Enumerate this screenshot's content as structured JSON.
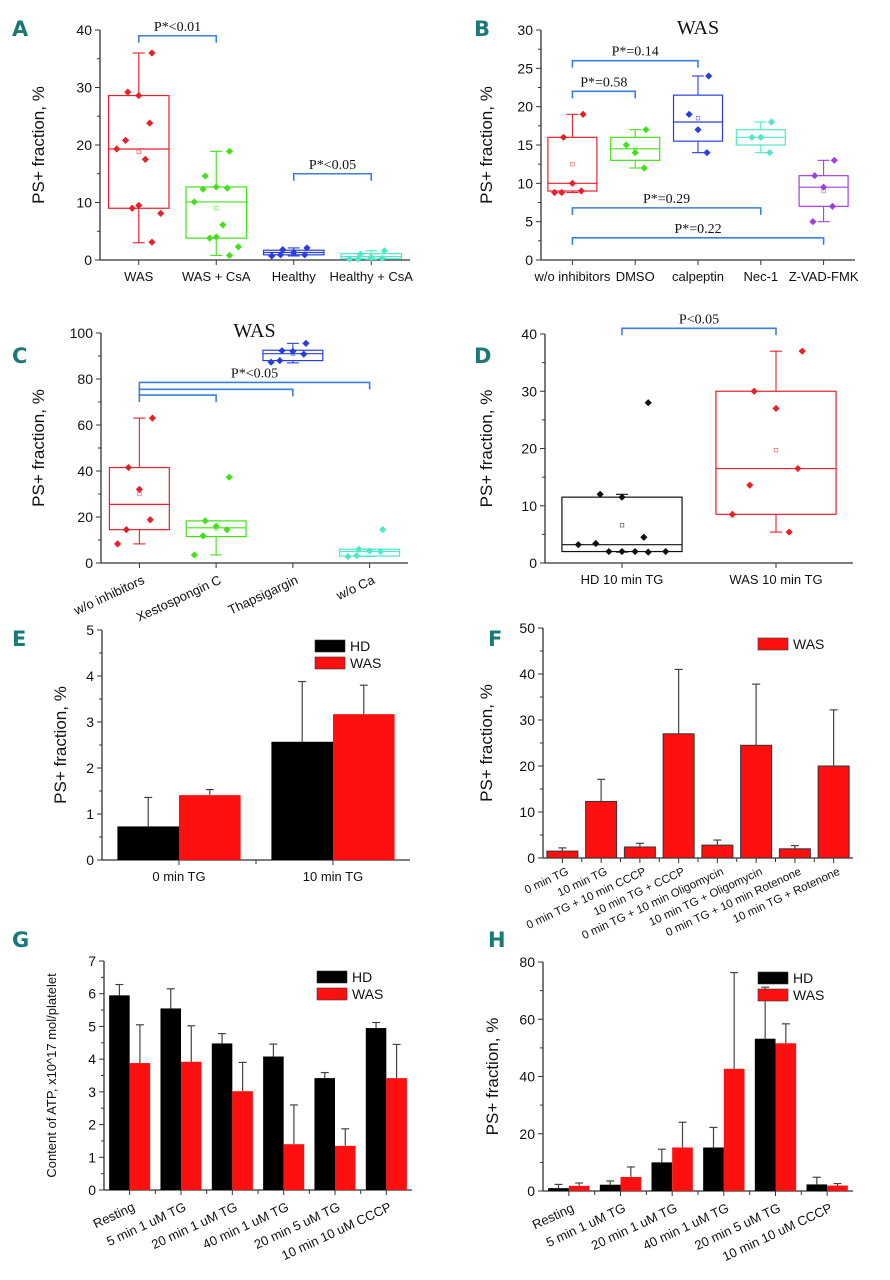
{
  "figure": {
    "panels": [
      "A",
      "B",
      "C",
      "D",
      "E",
      "F",
      "G",
      "H"
    ]
  },
  "chart_data": [
    {
      "panel": "A",
      "type": "box",
      "title": "",
      "xlabel": "",
      "ylabel": "PS+ fraction, %",
      "ylim": [
        0,
        40
      ],
      "yticks": [
        0,
        10,
        20,
        30,
        40
      ],
      "categories": [
        "WAS",
        "WAS + CsA",
        "Healthy",
        "Healthy + CsA"
      ],
      "colors": [
        "#e8202a",
        "#44e01a",
        "#2a3ee0",
        "#50e8c8"
      ],
      "boxes": [
        {
          "q1": 9,
          "median": 19.3,
          "q3": 28.6,
          "whisker_low": 3,
          "whisker_high": 36,
          "mean": 18.8,
          "points": [
            36,
            29.2,
            28.6,
            23.8,
            20.8,
            19.3,
            17.5,
            9.5,
            9,
            8.1,
            3.1
          ]
        },
        {
          "q1": 3.8,
          "median": 10.1,
          "q3": 12.7,
          "whisker_low": 0.8,
          "whisker_high": 18.9,
          "mean": 9,
          "points": [
            18.9,
            14.6,
            12.7,
            12.5,
            12.3,
            10.1,
            6.1,
            4,
            3.8,
            2.3,
            0.8
          ]
        },
        {
          "q1": 0.9,
          "median": 1.3,
          "q3": 1.7,
          "whisker_low": 0.7,
          "whisker_high": 2.1,
          "mean": 1.3,
          "points": [
            2.1,
            1.8,
            1.3,
            0.9,
            0.9,
            0.7
          ]
        },
        {
          "q1": 0.2,
          "median": 0.6,
          "q3": 1.1,
          "whisker_low": 0.1,
          "whisker_high": 1.6,
          "mean": 0.7,
          "points": [
            1.6,
            1,
            0.4,
            0.3,
            0.2,
            0.2
          ]
        }
      ],
      "annotations": [
        {
          "text": "P*<0.01",
          "from": 0,
          "to": 1,
          "y": 39
        },
        {
          "text": "P*<0.05",
          "from": 2,
          "to": 3,
          "y": 15
        }
      ]
    },
    {
      "panel": "B",
      "type": "box",
      "title": "WAS",
      "xlabel": "",
      "ylabel": "PS+ fraction, %",
      "ylim": [
        0,
        30
      ],
      "yticks": [
        0,
        5,
        10,
        15,
        20,
        25,
        30
      ],
      "categories": [
        "w/o inhibitors",
        "DMSO",
        "calpeptin",
        "Nec-1",
        "Z-VAD-FMK"
      ],
      "colors": [
        "#e8202a",
        "#44e01a",
        "#2a3ee0",
        "#50e8c8",
        "#a040e0"
      ],
      "boxes": [
        {
          "q1": 9,
          "median": 10,
          "q3": 16,
          "whisker_low": 8.8,
          "whisker_high": 19,
          "mean": 12.5,
          "points": [
            19,
            16,
            10,
            9,
            8.8,
            8.8
          ]
        },
        {
          "q1": 13,
          "median": 14.5,
          "q3": 16,
          "whisker_low": 12,
          "whisker_high": 17,
          "mean": 14.5,
          "points": [
            17,
            15,
            14,
            12
          ]
        },
        {
          "q1": 15.5,
          "median": 18,
          "q3": 21.5,
          "whisker_low": 14,
          "whisker_high": 24,
          "mean": 18.5,
          "points": [
            24,
            19,
            17,
            14
          ]
        },
        {
          "q1": 15,
          "median": 16,
          "q3": 17,
          "whisker_low": 14,
          "whisker_high": 18,
          "mean": 16,
          "points": [
            18,
            16,
            16,
            14
          ]
        },
        {
          "q1": 7,
          "median": 9.5,
          "q3": 11,
          "whisker_low": 5,
          "whisker_high": 13,
          "mean": 9,
          "points": [
            13,
            11,
            9.5,
            7,
            5
          ]
        }
      ],
      "annotations": [
        {
          "text": "P*=0.14",
          "from": 0,
          "to": 2,
          "y": 26
        },
        {
          "text": "P*=0.58",
          "from": 0,
          "to": 1,
          "y": 22
        },
        {
          "text": "P*=0.29",
          "from": 0,
          "to": 3,
          "y": 6.8
        },
        {
          "text": "P*=0.22",
          "from": 0,
          "to": 4,
          "y": 2.9
        }
      ]
    },
    {
      "panel": "C",
      "type": "box",
      "title": "WAS",
      "xlabel": "",
      "ylabel": "PS+ fraction, %",
      "ylim": [
        0,
        100
      ],
      "yticks": [
        0,
        20,
        40,
        60,
        80,
        100
      ],
      "categories": [
        "w/o inhibitors",
        "Xestospongin C",
        "Thapsigargin",
        "w/o Ca"
      ],
      "colors": [
        "#e8202a",
        "#44e01a",
        "#2a3ee0",
        "#50e8c8"
      ],
      "boxes": [
        {
          "q1": 14.5,
          "median": 25.5,
          "q3": 41.5,
          "whisker_low": 8.3,
          "whisker_high": 63,
          "mean": 30,
          "points": [
            63,
            41.5,
            32,
            18.8,
            14.5,
            8.3
          ]
        },
        {
          "q1": 11.5,
          "median": 15.3,
          "q3": 18.3,
          "whisker_low": 3.5,
          "whisker_high": 18.3,
          "mean": 15,
          "points": [
            37.3,
            18.3,
            16,
            14.5,
            11.8,
            3.5
          ]
        },
        {
          "q1": 88,
          "median": 91,
          "q3": 92.5,
          "whisker_low": 87,
          "whisker_high": 95.5,
          "mean": 91,
          "points": [
            95.5,
            92.3,
            92,
            90.8,
            88,
            87.3
          ]
        },
        {
          "q1": 3,
          "median": 5,
          "q3": 6,
          "whisker_low": 2.8,
          "whisker_high": 6,
          "mean": 5,
          "points": [
            14.5,
            6,
            5.3,
            5,
            3.2,
            2.8
          ]
        }
      ],
      "annotations": [
        {
          "text": "P*<0.05",
          "from": 0,
          "to": 3,
          "y": 78.5
        },
        {
          "from": 0,
          "to": 2,
          "y": 75.5
        },
        {
          "from": 0,
          "to": 1,
          "y": 73
        }
      ]
    },
    {
      "panel": "D",
      "type": "box",
      "title": "",
      "xlabel": "",
      "ylabel": "PS+ fraction, %",
      "ylim": [
        0,
        40
      ],
      "yticks": [
        0,
        10,
        20,
        30,
        40
      ],
      "categories": [
        "HD 10 min TG",
        "WAS 10 min TG"
      ],
      "colors": [
        "#111111",
        "#e8202a"
      ],
      "boxes": [
        {
          "q1": 2,
          "median": 3.2,
          "q3": 11.5,
          "whisker_low": 1.9,
          "whisker_high": 12,
          "mean": 6.6,
          "points": [
            28,
            12,
            11.5,
            4.5,
            3.4,
            3.2,
            2,
            2,
            2,
            2,
            1.9
          ]
        },
        {
          "q1": 8.5,
          "median": 16.5,
          "q3": 30,
          "whisker_low": 5.4,
          "whisker_high": 37,
          "mean": 19.7,
          "points": [
            37,
            30,
            27,
            16.5,
            13.6,
            8.5,
            5.4
          ]
        }
      ],
      "annotations": [
        {
          "text": "P<0.05",
          "from": 0,
          "to": 1,
          "y": 41
        }
      ]
    },
    {
      "panel": "E",
      "type": "bar",
      "title": "",
      "xlabel": "",
      "ylabel": "PS+ fraction, %",
      "ylim": [
        0,
        5
      ],
      "yticks": [
        0,
        1,
        2,
        3,
        4,
        5
      ],
      "categories": [
        "0 min TG",
        "10 min TG"
      ],
      "legend": "top-right",
      "series": [
        {
          "name": "HD",
          "color": "#000000",
          "values": [
            0.73,
            2.57
          ],
          "errors": [
            0.63,
            1.31
          ]
        },
        {
          "name": "WAS",
          "color": "#ff1010",
          "values": [
            1.41,
            3.17
          ],
          "errors": [
            0.12,
            0.63
          ]
        }
      ]
    },
    {
      "panel": "F",
      "type": "bar",
      "title": "",
      "xlabel": "",
      "ylabel": "PS+ fraction, %",
      "ylim": [
        0,
        50
      ],
      "yticks": [
        0,
        10,
        20,
        30,
        40,
        50
      ],
      "categories": [
        "0 min TG",
        "10 min TG",
        "0 min TG + 10 min CCCP",
        "10 min TG + CCCP",
        "0 min TG + 10 min Oligomycin",
        "10 min TG + Oligomycin",
        "0 min TG + 10 min Rotenone",
        "10 min TG + Rotenone"
      ],
      "legend": "top-right",
      "series": [
        {
          "name": "WAS",
          "color": "#ff1010",
          "values": [
            1.5,
            12.3,
            2.4,
            27,
            2.8,
            24.5,
            2,
            20
          ],
          "errors": [
            0.7,
            4.8,
            0.8,
            14,
            1.1,
            13.3,
            0.7,
            12.2
          ]
        }
      ]
    },
    {
      "panel": "G",
      "type": "bar",
      "title": "",
      "xlabel": "",
      "ylabel": "Content of ATP, x10^17 mol/platelet",
      "ylim": [
        0,
        7
      ],
      "yticks": [
        0,
        1,
        2,
        3,
        4,
        5,
        6,
        7
      ],
      "categories": [
        "Resting",
        "5 min 1 uM TG",
        "20 min 1 uM TG",
        "40 min 1 uM TG",
        "20 min 5 uM TG",
        "10 min 10 uM CCCP"
      ],
      "legend": "top-right",
      "series": [
        {
          "name": "HD",
          "color": "#000000",
          "values": [
            5.95,
            5.55,
            4.48,
            4.08,
            3.42,
            4.95
          ],
          "errors": [
            0.33,
            0.6,
            0.3,
            0.38,
            0.17,
            0.17
          ]
        },
        {
          "name": "WAS",
          "color": "#ff1010",
          "values": [
            3.88,
            3.92,
            3.02,
            1.4,
            1.35,
            3.42
          ],
          "errors": [
            1.17,
            1.1,
            0.88,
            1.2,
            0.52,
            1.03
          ]
        }
      ]
    },
    {
      "panel": "H",
      "type": "bar",
      "title": "",
      "xlabel": "",
      "ylabel": "PS+ fraction, %",
      "ylim": [
        0,
        80
      ],
      "yticks": [
        0,
        20,
        40,
        60,
        80
      ],
      "categories": [
        "Resting",
        "5 min 1 uM TG",
        "20 min 1 uM TG",
        "40 min 1 uM TG",
        "20 min 5 uM TG",
        "10 min 10 uM CCCP"
      ],
      "legend": "top-right",
      "series": [
        {
          "name": "HD",
          "color": "#000000",
          "values": [
            1,
            2.2,
            10,
            15.2,
            53.2,
            2.3
          ],
          "errors": [
            1.3,
            1.3,
            4.6,
            7,
            18,
            2.5
          ]
        },
        {
          "name": "WAS",
          "color": "#ff1010",
          "values": [
            1.8,
            4.9,
            15.2,
            42.7,
            51.6,
            1.9
          ],
          "errors": [
            1,
            3.5,
            8.8,
            33.6,
            6.8,
            0.7
          ]
        }
      ]
    }
  ]
}
